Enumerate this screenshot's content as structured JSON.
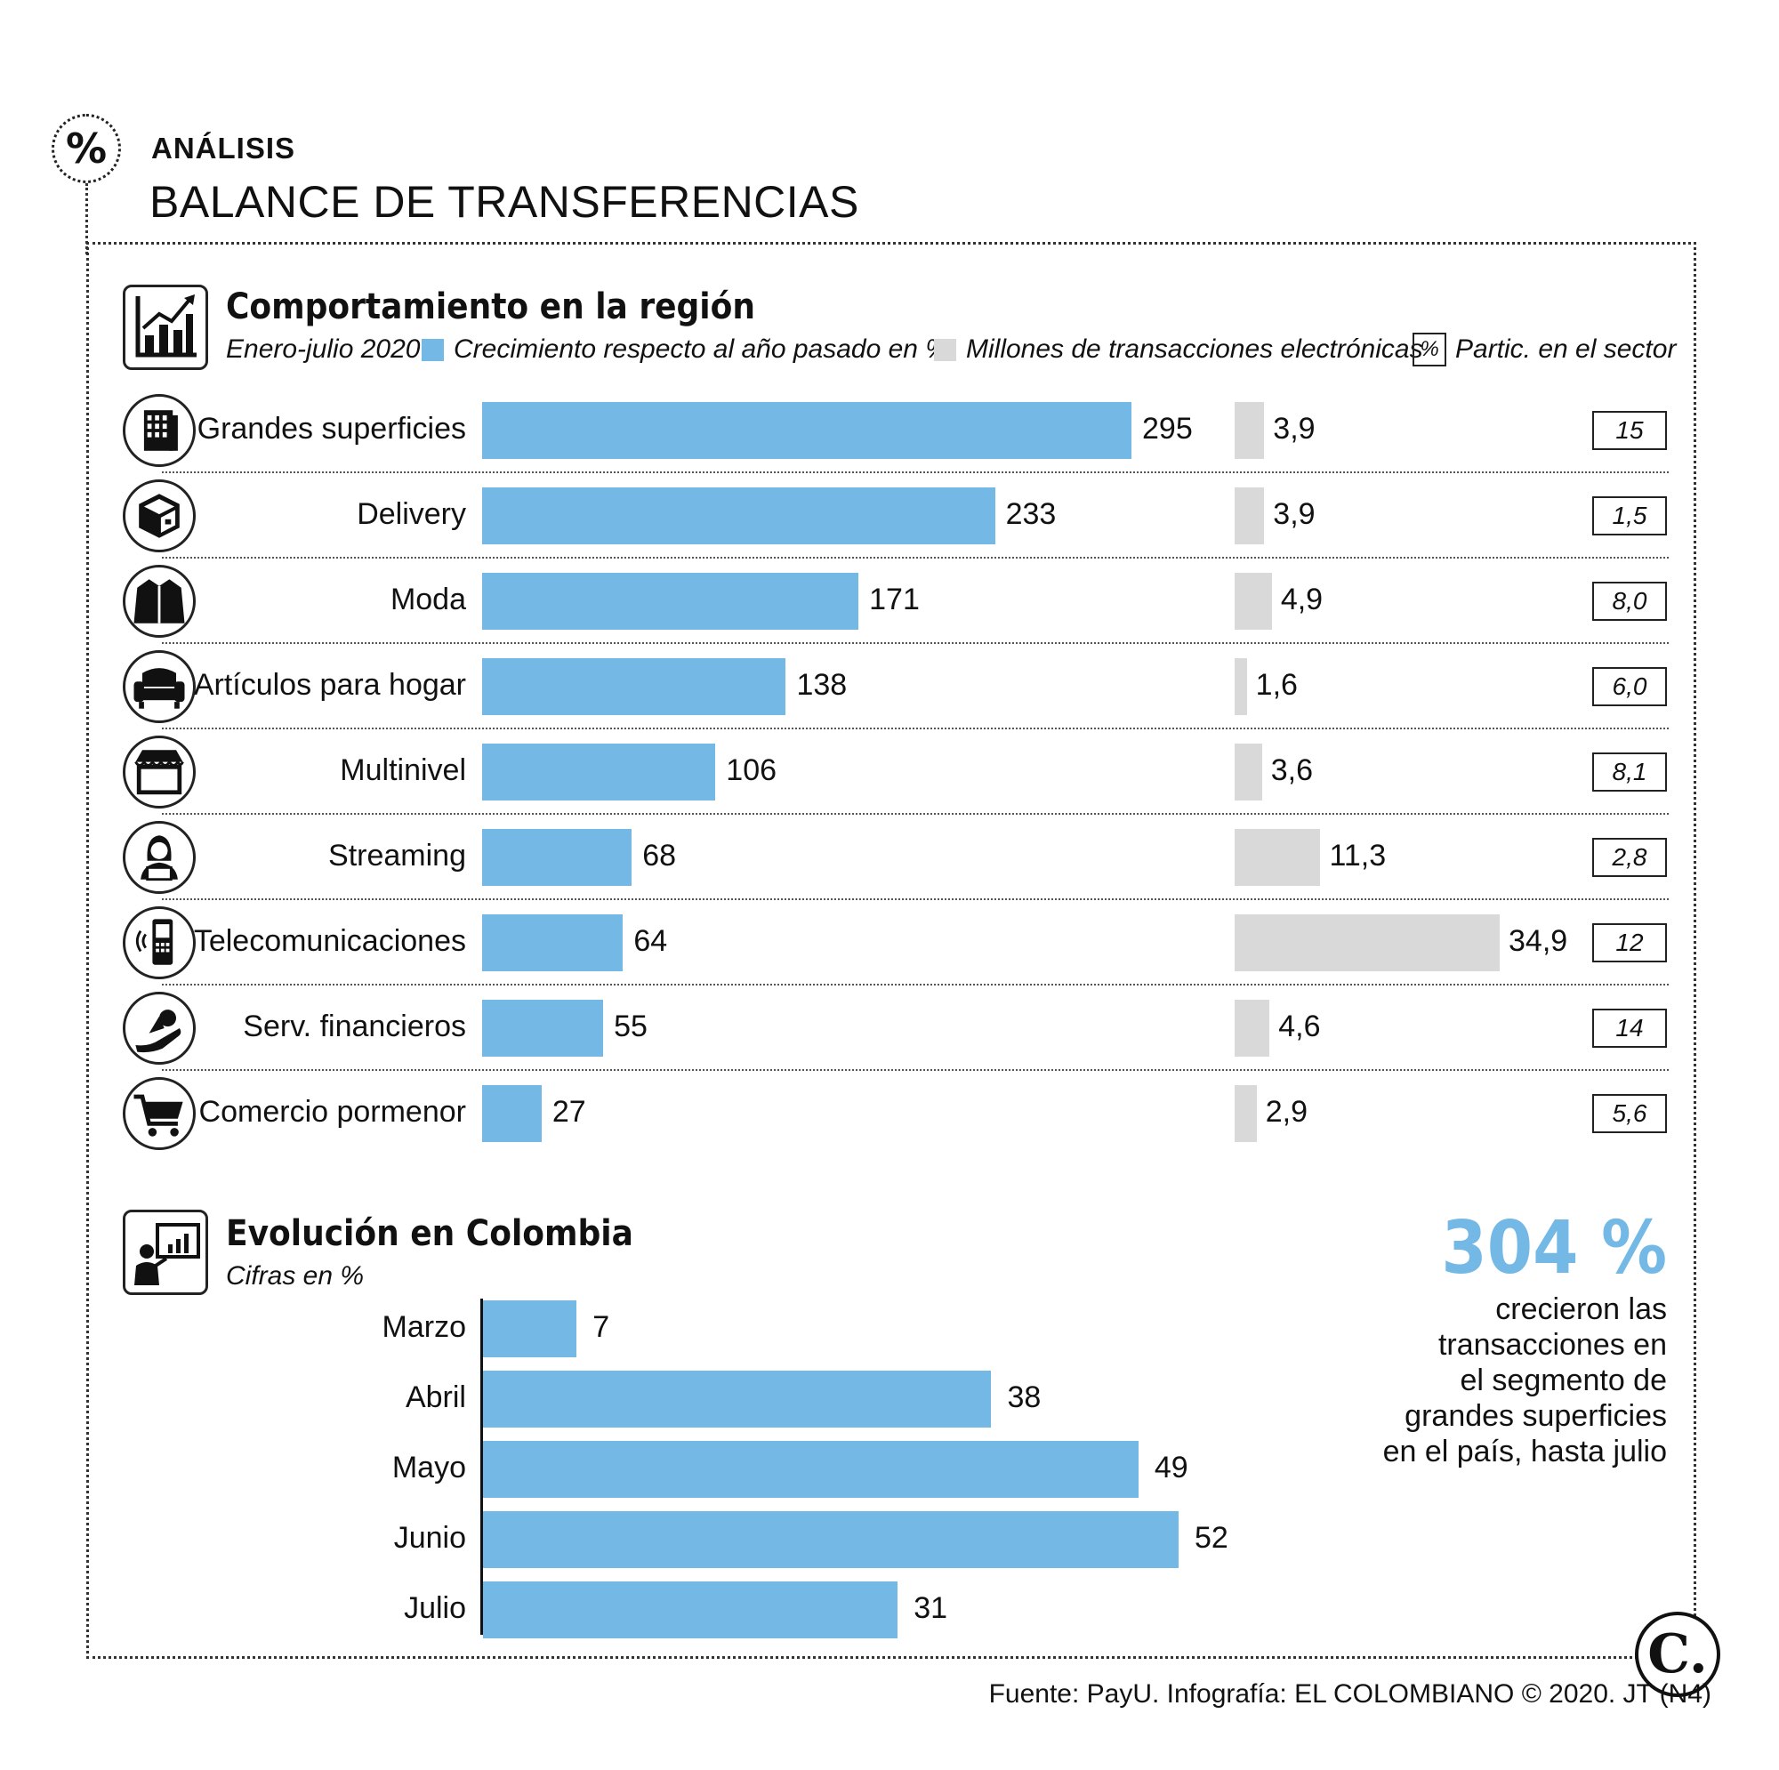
{
  "header": {
    "section_label": "ANÁLISIS",
    "title": "BALANCE DE TRANSFERENCIAS"
  },
  "region": {
    "title": "Comportamiento en la región",
    "period": "Enero-julio 2020",
    "legend_growth": "Crecimiento respecto al año pasado en %",
    "legend_transactions": "Millones de transacciones electrónicas",
    "legend_share_symbol": "%",
    "legend_share": "Partic. en el sector"
  },
  "colombia": {
    "title": "Evolución en Colombia",
    "subtitle": "Cifras en  %"
  },
  "highlight": {
    "number": "304 %",
    "lines": [
      "crecieron las",
      "transacciones en",
      "el segmento de",
      "grandes superficies",
      "en el país, hasta julio"
    ]
  },
  "footer": {
    "logo": "C.",
    "source": "Fuente: PayU. Infografía: EL COLOMBIANO © 2020. JT (N4)"
  },
  "colors": {
    "blue": "#74b9e5",
    "grey": "#d9d9d9"
  },
  "chart_data": [
    {
      "type": "bar",
      "orientation": "horizontal",
      "categories": [
        "Grandes superficies",
        "Delivery",
        "Moda",
        "Artículos para hogar",
        "Multinivel",
        "Streaming",
        "Telecomunicaciones",
        "Serv. financieros",
        "Comercio pormenor"
      ],
      "icons": [
        "building-icon",
        "box-icon",
        "jacket-icon",
        "armchair-icon",
        "storefront-icon",
        "person-laptop-icon",
        "phone-icon",
        "hand-money-icon",
        "cart-icon"
      ],
      "series": [
        {
          "name": "Crecimiento respecto al año pasado en %",
          "color": "#74b9e5",
          "values": [
            295,
            233,
            171,
            138,
            106,
            68,
            64,
            55,
            27
          ],
          "labels": [
            "295",
            "233",
            "171",
            "138",
            "106",
            "68",
            "64",
            "55",
            "27"
          ]
        },
        {
          "name": "Millones de transacciones electrónicas",
          "color": "#d9d9d9",
          "values": [
            3.9,
            3.9,
            4.9,
            1.6,
            3.6,
            11.3,
            34.9,
            4.6,
            2.9
          ],
          "labels": [
            "3,9",
            "3,9",
            "4,9",
            "1,6",
            "3,6",
            "11,3",
            "34,9",
            "4,6",
            "2,9"
          ]
        },
        {
          "name": "Partic. en el sector",
          "values": [
            15,
            1.5,
            8.0,
            6.0,
            8.1,
            2.8,
            12,
            14,
            5.6
          ],
          "labels": [
            "15",
            "1,5",
            "8,0",
            "6,0",
            "8,1",
            "2,8",
            "12",
            "14",
            "5,6"
          ]
        }
      ]
    },
    {
      "type": "bar",
      "orientation": "horizontal",
      "categories": [
        "Marzo",
        "Abril",
        "Mayo",
        "Junio",
        "Julio"
      ],
      "values": [
        7,
        38,
        49,
        52,
        31
      ],
      "labels": [
        "7",
        "38",
        "49",
        "52",
        "31"
      ]
    }
  ]
}
